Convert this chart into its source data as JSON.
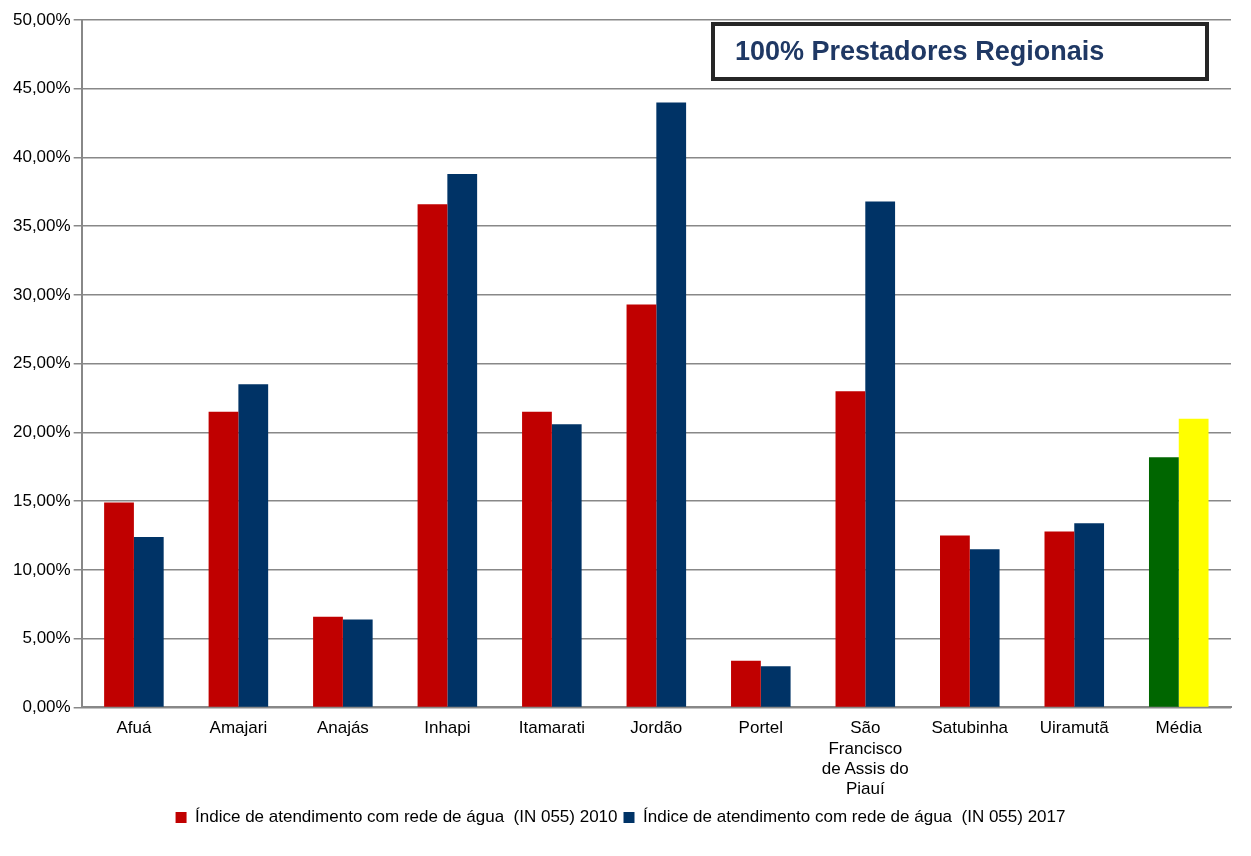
{
  "chart_data": {
    "type": "bar",
    "title": "100% Prestadores Regionais",
    "categories": [
      "Afuá",
      "Amajari",
      "Anajás",
      "Inhapi",
      "Itamarati",
      "Jordão",
      "Portel",
      "São Francisco de Assis do Piauí",
      "Satubinha",
      "Uiramutã",
      "Média"
    ],
    "series": [
      {
        "name": "Índice de atendimento com rede de água  (IN 055) 2010",
        "color": "#c00000",
        "colors": [
          "#c00000",
          "#c00000",
          "#c00000",
          "#c00000",
          "#c00000",
          "#c00000",
          "#c00000",
          "#c00000",
          "#c00000",
          "#c00000",
          "#006600"
        ],
        "values": [
          14.9,
          21.5,
          6.6,
          36.6,
          21.5,
          29.3,
          3.4,
          23.0,
          12.5,
          12.8,
          18.2
        ]
      },
      {
        "name": "Índice de atendimento com rede de água  (IN 055) 2017",
        "color": "#003366",
        "colors": [
          "#003366",
          "#003366",
          "#003366",
          "#003366",
          "#003366",
          "#003366",
          "#003366",
          "#003366",
          "#003366",
          "#003366",
          "#ffff00"
        ],
        "values": [
          12.4,
          23.5,
          6.4,
          38.8,
          20.6,
          44.0,
          3.0,
          36.8,
          11.5,
          13.4,
          21.0
        ]
      }
    ],
    "ylim": [
      0,
      50
    ],
    "yticks": [
      {
        "value": 0,
        "label": "0,00%"
      },
      {
        "value": 5,
        "label": "5,00%"
      },
      {
        "value": 10,
        "label": "10,00%"
      },
      {
        "value": 15,
        "label": "15,00%"
      },
      {
        "value": 20,
        "label": "20,00%"
      },
      {
        "value": 25,
        "label": "25,00%"
      },
      {
        "value": 30,
        "label": "30,00%"
      },
      {
        "value": 35,
        "label": "35,00%"
      },
      {
        "value": 40,
        "label": "40,00%"
      },
      {
        "value": 45,
        "label": "45,00%"
      },
      {
        "value": 50,
        "label": "50,00%"
      }
    ],
    "grid": "y",
    "legend": "bottom"
  }
}
